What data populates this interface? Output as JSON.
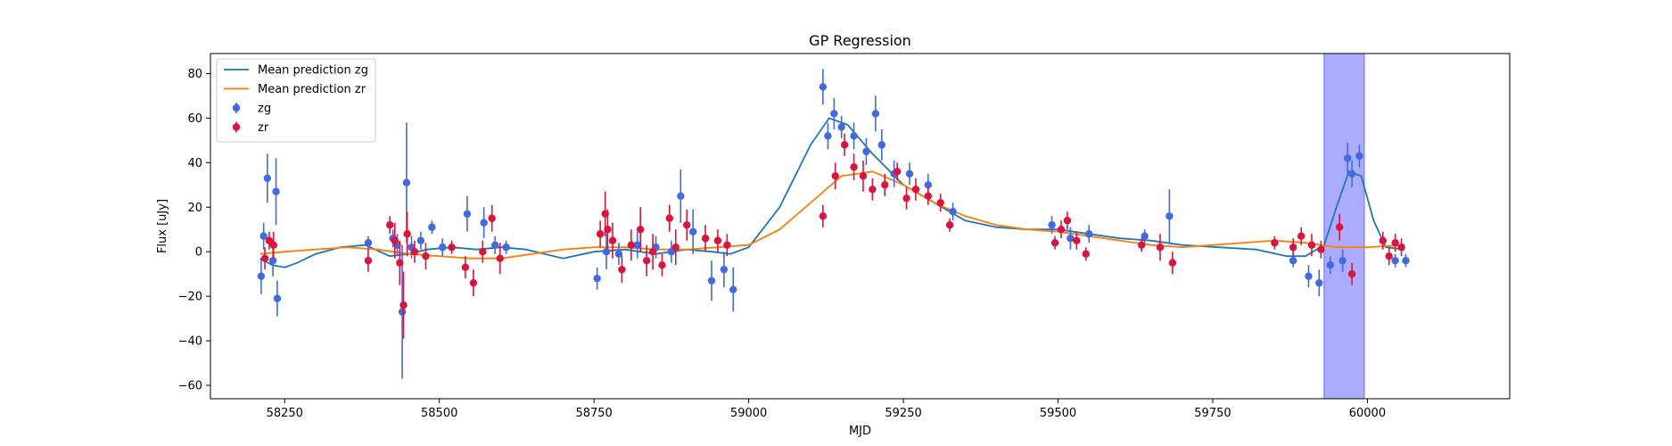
{
  "chart_data": {
    "type": "scatter",
    "title": "GP Regression",
    "xlabel": "MJD",
    "ylabel": "Flux [uJy]",
    "xlim": [
      58130,
      60230
    ],
    "ylim": [
      -66,
      89
    ],
    "xticks": [
      58250,
      58500,
      58750,
      59000,
      59250,
      59500,
      59750,
      60000
    ],
    "xtick_labels": [
      "58250",
      "58500",
      "58750",
      "59000",
      "59250",
      "59500",
      "59750",
      "60000"
    ],
    "yticks": [
      -60,
      -40,
      -20,
      0,
      20,
      40,
      60,
      80
    ],
    "ytick_labels": [
      "−60",
      "−40",
      "−20",
      "0",
      "20",
      "40",
      "60",
      "80"
    ],
    "legend_position": "top-left",
    "shaded_region": {
      "x0": 59930,
      "x1": 59995,
      "color": "#a6a6ff"
    },
    "series": [
      {
        "name": "Mean prediction zg",
        "kind": "line",
        "color": "#1f77b4",
        "x": [
          58210,
          58230,
          58250,
          58270,
          58300,
          58340,
          58380,
          58420,
          58450,
          58480,
          58520,
          58560,
          58600,
          58640,
          58700,
          58750,
          58800,
          58850,
          58900,
          58940,
          58970,
          59000,
          59050,
          59100,
          59130,
          59160,
          59200,
          59250,
          59300,
          59350,
          59400,
          59450,
          59500,
          59550,
          59600,
          59650,
          59700,
          59760,
          59820,
          59870,
          59900,
          59930,
          59950,
          59970,
          59990,
          60010,
          60030,
          60060
        ],
        "y": [
          -3,
          -6,
          -7,
          -5,
          -1,
          2,
          3,
          -2,
          -1,
          1,
          2,
          1,
          2,
          1,
          -3,
          0,
          1,
          -1,
          1,
          0,
          -1,
          2,
          20,
          48,
          60,
          57,
          44,
          30,
          22,
          14,
          11,
          10,
          10,
          8,
          6,
          5,
          3,
          2,
          1,
          -2,
          -2,
          3,
          20,
          36,
          34,
          14,
          2,
          1
        ]
      },
      {
        "name": "Mean prediction zr",
        "kind": "line",
        "color": "#ff7f0e",
        "x": [
          58210,
          58250,
          58300,
          58350,
          58400,
          58450,
          58500,
          58550,
          58600,
          58650,
          58700,
          58750,
          58800,
          58850,
          58900,
          58950,
          59000,
          59050,
          59100,
          59150,
          59200,
          59250,
          59300,
          59350,
          59400,
          59450,
          59500,
          59550,
          59600,
          59650,
          59700,
          59750,
          59800,
          59850,
          59900,
          59950,
          60000,
          60060
        ],
        "y": [
          -1,
          0,
          1,
          2,
          1,
          -1,
          -2,
          -3,
          -3,
          -1,
          1,
          2,
          2,
          1,
          1,
          2,
          3,
          10,
          22,
          34,
          36,
          30,
          22,
          16,
          12,
          10,
          9,
          7,
          5,
          3,
          2,
          3,
          4,
          5,
          4,
          2,
          2,
          3
        ]
      },
      {
        "name": "zg",
        "kind": "errorbar",
        "color": "#4169e1",
        "x": [
          58212,
          58216,
          58222,
          58231,
          58236,
          58238,
          58385,
          58425,
          58432,
          58440,
          58447,
          58455,
          58470,
          58488,
          58505,
          58545,
          58572,
          58590,
          58608,
          58755,
          58770,
          58790,
          58820,
          58850,
          58875,
          58890,
          58910,
          58940,
          58960,
          58975,
          59120,
          59128,
          59138,
          59150,
          59170,
          59190,
          59205,
          59215,
          59235,
          59260,
          59290,
          59330,
          59490,
          59520,
          59550,
          59640,
          59680,
          59880,
          59905,
          59922,
          59940,
          59960,
          59968,
          59975,
          59987,
          60045,
          60062
        ],
        "y": [
          -11,
          7,
          33,
          -4,
          27,
          -21,
          4,
          6,
          3,
          -27,
          31,
          2,
          5,
          11,
          2,
          17,
          13,
          3,
          2,
          -12,
          0,
          -1,
          3,
          2,
          0,
          25,
          9,
          -13,
          -8,
          -17,
          74,
          52,
          62,
          56,
          52,
          45,
          62,
          48,
          35,
          35,
          30,
          18,
          12,
          6,
          8,
          7,
          16,
          -4,
          -11,
          -14,
          -6,
          -4,
          42,
          35,
          43,
          -4,
          -4
        ],
        "err": [
          8,
          6,
          11,
          7,
          15,
          8,
          3,
          4,
          5,
          30,
          27,
          5,
          4,
          3,
          4,
          8,
          7,
          4,
          3,
          5,
          8,
          5,
          6,
          5,
          5,
          12,
          10,
          9,
          8,
          10,
          8,
          6,
          7,
          5,
          6,
          6,
          8,
          7,
          6,
          5,
          5,
          4,
          4,
          5,
          4,
          3,
          12,
          3,
          5,
          6,
          4,
          5,
          7,
          6,
          5,
          3,
          3
        ]
      },
      {
        "name": "zr",
        "kind": "errorbar",
        "color": "#dc143c",
        "x": [
          58218,
          58225,
          58232,
          58385,
          58420,
          58428,
          58436,
          58442,
          58448,
          58460,
          58478,
          58520,
          58542,
          58555,
          58570,
          58585,
          58598,
          58760,
          58768,
          58772,
          58780,
          58795,
          58810,
          58825,
          58835,
          58845,
          58860,
          58872,
          58882,
          58900,
          58930,
          58950,
          58965,
          59120,
          59140,
          59155,
          59170,
          59185,
          59200,
          59220,
          59240,
          59255,
          59270,
          59290,
          59310,
          59325,
          59495,
          59505,
          59515,
          59530,
          59545,
          59635,
          59665,
          59685,
          59850,
          59880,
          59893,
          59910,
          59925,
          59955,
          59975,
          60025,
          60035,
          60045,
          60055
        ],
        "y": [
          -3,
          5,
          3,
          -4,
          12,
          5,
          -5,
          -24,
          8,
          0,
          -2,
          2,
          -7,
          -14,
          0,
          15,
          -3,
          8,
          17,
          10,
          5,
          -8,
          3,
          10,
          -4,
          0,
          -6,
          15,
          2,
          12,
          6,
          5,
          3,
          16,
          34,
          48,
          38,
          34,
          28,
          30,
          36,
          24,
          28,
          25,
          22,
          12,
          4,
          10,
          14,
          5,
          -1,
          3,
          2,
          -5,
          4,
          2,
          7,
          3,
          1,
          11,
          -10,
          5,
          -2,
          4,
          2
        ],
        "err": [
          5,
          4,
          6,
          5,
          4,
          8,
          10,
          15,
          10,
          5,
          6,
          3,
          5,
          6,
          5,
          6,
          7,
          6,
          10,
          9,
          8,
          6,
          7,
          10,
          7,
          8,
          5,
          6,
          8,
          7,
          6,
          5,
          5,
          5,
          6,
          5,
          6,
          7,
          5,
          5,
          4,
          5,
          5,
          4,
          4,
          3,
          3,
          4,
          4,
          4,
          3,
          3,
          6,
          5,
          3,
          4,
          4,
          5,
          4,
          6,
          5,
          4,
          4,
          4,
          4
        ]
      }
    ]
  }
}
